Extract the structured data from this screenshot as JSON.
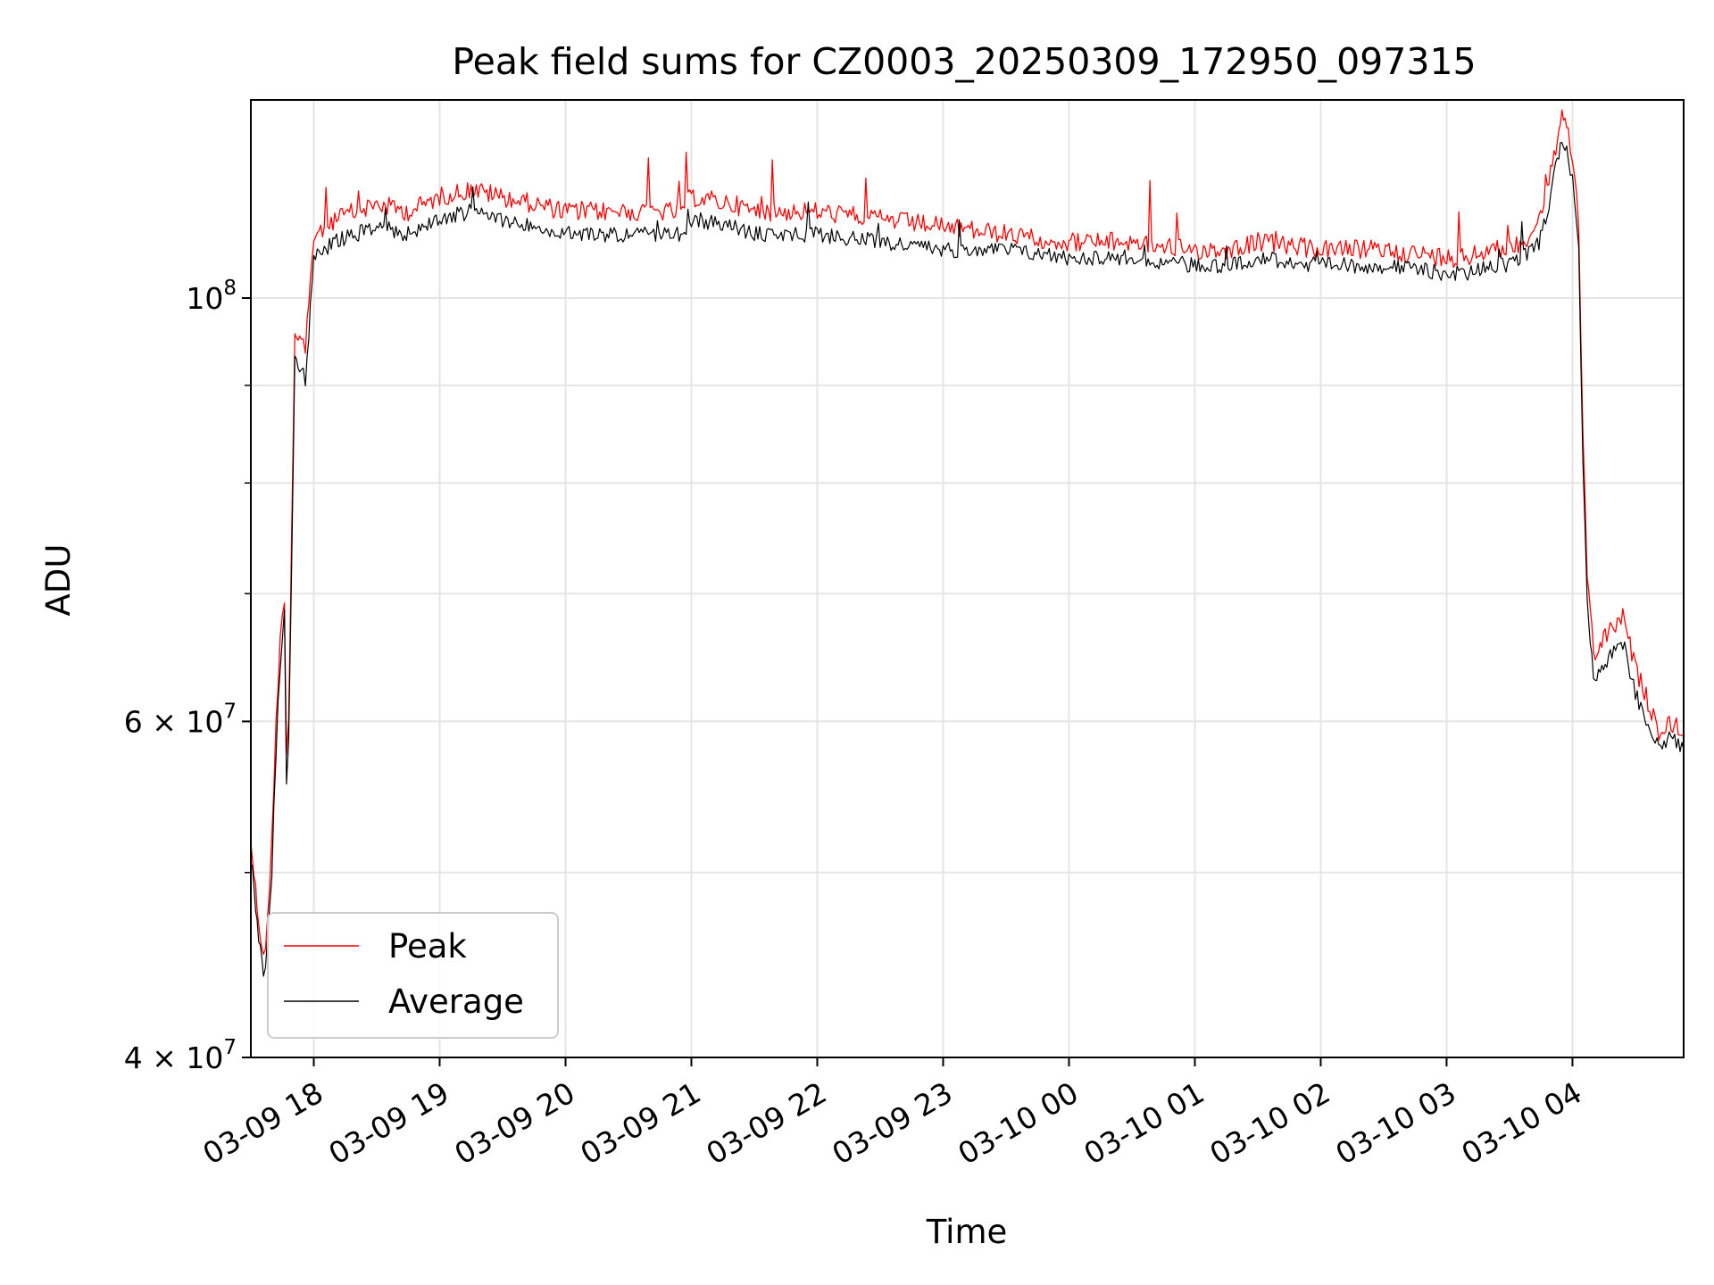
{
  "chart_data": {
    "type": "line",
    "title": "Peak field sums for CZ0003_20250309_172950_097315",
    "xlabel": "Time",
    "ylabel": "ADU",
    "yscale": "log",
    "ylim": [
      40000000,
      127000000
    ],
    "xlim": [
      "2025-03-09 17:30",
      "2025-03-10 04:53"
    ],
    "x_ticks": [
      "03-09 18",
      "03-09 19",
      "03-09 20",
      "03-09 21",
      "03-09 22",
      "03-09 23",
      "03-10 00",
      "03-10 01",
      "03-10 02",
      "03-10 03",
      "03-10 04"
    ],
    "y_ticks": [
      {
        "value": 40000000,
        "base": "4",
        "label": "4 × 10",
        "exp": "7"
      },
      {
        "value": 60000000,
        "base": "6",
        "label": "6 × 10",
        "exp": "7"
      },
      {
        "value": 100000000,
        "base": "",
        "label": "10",
        "exp": "8"
      }
    ],
    "grid": true,
    "legend_position": "lower-left",
    "series": [
      {
        "name": "Peak",
        "color": "#ff0000",
        "x": [
          "2025-03-09 17:30",
          "2025-03-09 17:33",
          "2025-03-09 17:36",
          "2025-03-09 17:38",
          "2025-03-09 17:40",
          "2025-03-09 17:42",
          "2025-03-09 17:44",
          "2025-03-09 17:46",
          "2025-03-09 17:47",
          "2025-03-09 17:48",
          "2025-03-09 17:51",
          "2025-03-09 17:54",
          "2025-03-09 17:55",
          "2025-03-09 17:56",
          "2025-03-09 18:00",
          "2025-03-09 18:10",
          "2025-03-09 18:30",
          "2025-03-09 18:45",
          "2025-03-09 19:00",
          "2025-03-09 19:15",
          "2025-03-09 19:30",
          "2025-03-09 19:45",
          "2025-03-09 20:00",
          "2025-03-09 20:30",
          "2025-03-09 20:55",
          "2025-03-09 21:00",
          "2025-03-09 21:20",
          "2025-03-09 21:30",
          "2025-03-09 22:00",
          "2025-03-09 22:30",
          "2025-03-09 23:00",
          "2025-03-09 23:30",
          "2025-03-10 00:00",
          "2025-03-10 00:30",
          "2025-03-10 01:00",
          "2025-03-10 01:15",
          "2025-03-10 01:30",
          "2025-03-10 02:00",
          "2025-03-10 02:30",
          "2025-03-10 03:00",
          "2025-03-10 03:10",
          "2025-03-10 03:20",
          "2025-03-10 03:25",
          "2025-03-10 03:30",
          "2025-03-10 03:35",
          "2025-03-10 03:40",
          "2025-03-10 03:44",
          "2025-03-10 03:48",
          "2025-03-10 03:52",
          "2025-03-10 03:55",
          "2025-03-10 03:58",
          "2025-03-10 04:00",
          "2025-03-10 04:02",
          "2025-03-10 04:03",
          "2025-03-10 04:05",
          "2025-03-10 04:07",
          "2025-03-10 04:10",
          "2025-03-10 04:14",
          "2025-03-10 04:18",
          "2025-03-10 04:24",
          "2025-03-10 04:30",
          "2025-03-10 04:42",
          "2025-03-10 04:47",
          "2025-03-10 04:53"
        ],
        "y": [
          52000000,
          48000000,
          45000000,
          47000000,
          52000000,
          60000000,
          66000000,
          70000000,
          58000000,
          60000000,
          96000000,
          95000000,
          95000000,
          93000000,
          108000000,
          110000000,
          112000000,
          111000000,
          113000000,
          114000000,
          113000000,
          112000000,
          111000000,
          111000000,
          111000000,
          113000000,
          112000000,
          111000000,
          111000000,
          110000000,
          109000000,
          108000000,
          107000000,
          107000000,
          106000000,
          106000000,
          107000000,
          106000000,
          106000000,
          105000000,
          105000000,
          106000000,
          106000000,
          106000000,
          107000000,
          108000000,
          110000000,
          114000000,
          120000000,
          124000000,
          122000000,
          118000000,
          113000000,
          109000000,
          84000000,
          72000000,
          65000000,
          66000000,
          67000000,
          68000000,
          64000000,
          59000000,
          60000000,
          59000000
        ]
      },
      {
        "name": "Average",
        "color": "#000000",
        "x": [
          "2025-03-09 17:30",
          "2025-03-09 17:33",
          "2025-03-09 17:36",
          "2025-03-09 17:38",
          "2025-03-09 17:40",
          "2025-03-09 17:42",
          "2025-03-09 17:44",
          "2025-03-09 17:46",
          "2025-03-09 17:47",
          "2025-03-09 17:48",
          "2025-03-09 17:51",
          "2025-03-09 17:54",
          "2025-03-09 17:55",
          "2025-03-09 17:56",
          "2025-03-09 18:00",
          "2025-03-09 18:10",
          "2025-03-09 18:30",
          "2025-03-09 18:45",
          "2025-03-09 19:00",
          "2025-03-09 19:15",
          "2025-03-09 19:30",
          "2025-03-09 19:45",
          "2025-03-09 20:00",
          "2025-03-09 20:30",
          "2025-03-09 20:55",
          "2025-03-09 21:00",
          "2025-03-09 21:20",
          "2025-03-09 21:30",
          "2025-03-09 22:00",
          "2025-03-09 22:30",
          "2025-03-09 23:00",
          "2025-03-09 23:30",
          "2025-03-10 00:00",
          "2025-03-10 00:30",
          "2025-03-10 01:00",
          "2025-03-10 01:15",
          "2025-03-10 01:30",
          "2025-03-10 02:00",
          "2025-03-10 02:30",
          "2025-03-10 03:00",
          "2025-03-10 03:10",
          "2025-03-10 03:20",
          "2025-03-10 03:25",
          "2025-03-10 03:30",
          "2025-03-10 03:35",
          "2025-03-10 03:40",
          "2025-03-10 03:44",
          "2025-03-10 03:48",
          "2025-03-10 03:52",
          "2025-03-10 03:55",
          "2025-03-10 03:58",
          "2025-03-10 04:00",
          "2025-03-10 04:02",
          "2025-03-10 04:03",
          "2025-03-10 04:05",
          "2025-03-10 04:07",
          "2025-03-10 04:10",
          "2025-03-10 04:14",
          "2025-03-10 04:18",
          "2025-03-10 04:24",
          "2025-03-10 04:30",
          "2025-03-10 04:42",
          "2025-03-10 04:47",
          "2025-03-10 04:53"
        ],
        "y": [
          51000000,
          47000000,
          44000000,
          46000000,
          50000000,
          58000000,
          64000000,
          68000000,
          56000000,
          58000000,
          93000000,
          92000000,
          92000000,
          90000000,
          105000000,
          107000000,
          109000000,
          108000000,
          110000000,
          111000000,
          110000000,
          109000000,
          108000000,
          108000000,
          108000000,
          110000000,
          109000000,
          108000000,
          108000000,
          107000000,
          106000000,
          106000000,
          105000000,
          105000000,
          104000000,
          104000000,
          105000000,
          104000000,
          104000000,
          103000000,
          103000000,
          104000000,
          104000000,
          104000000,
          105000000,
          106000000,
          107000000,
          111000000,
          117000000,
          121000000,
          119000000,
          115000000,
          110000000,
          106000000,
          82000000,
          70000000,
          63000000,
          64000000,
          65000000,
          66000000,
          62000000,
          58000000,
          59000000,
          58000000
        ]
      }
    ]
  }
}
